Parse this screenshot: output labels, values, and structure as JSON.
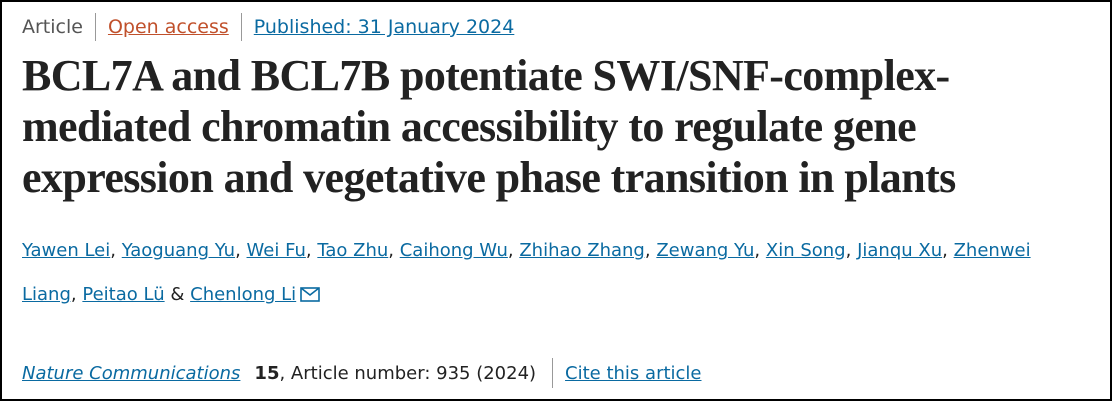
{
  "header": {
    "type": "Article",
    "access": "Open access",
    "published": "Published: 31 January 2024"
  },
  "title": "BCL7A and BCL7B potentiate SWI/SNF-complex-mediated chromatin accessibility to regulate gene expression and vegetative phase transition in plants",
  "authors": {
    "names": [
      "Yawen Lei",
      "Yaoguang Yu",
      "Wei Fu",
      "Tao Zhu",
      "Caihong Wu",
      "Zhihao Zhang",
      "Zewang Yu",
      "Xin Song",
      "Jianqu Xu",
      "Zhenwei Liang",
      "Peitao Lü",
      "Chenlong Li"
    ],
    "separator": ",",
    "last_separator": "&"
  },
  "citation": {
    "journal": "Nature Communications",
    "volume": 15,
    "details": ", Article number: 935 (2024)",
    "cite": "Cite this article"
  }
}
